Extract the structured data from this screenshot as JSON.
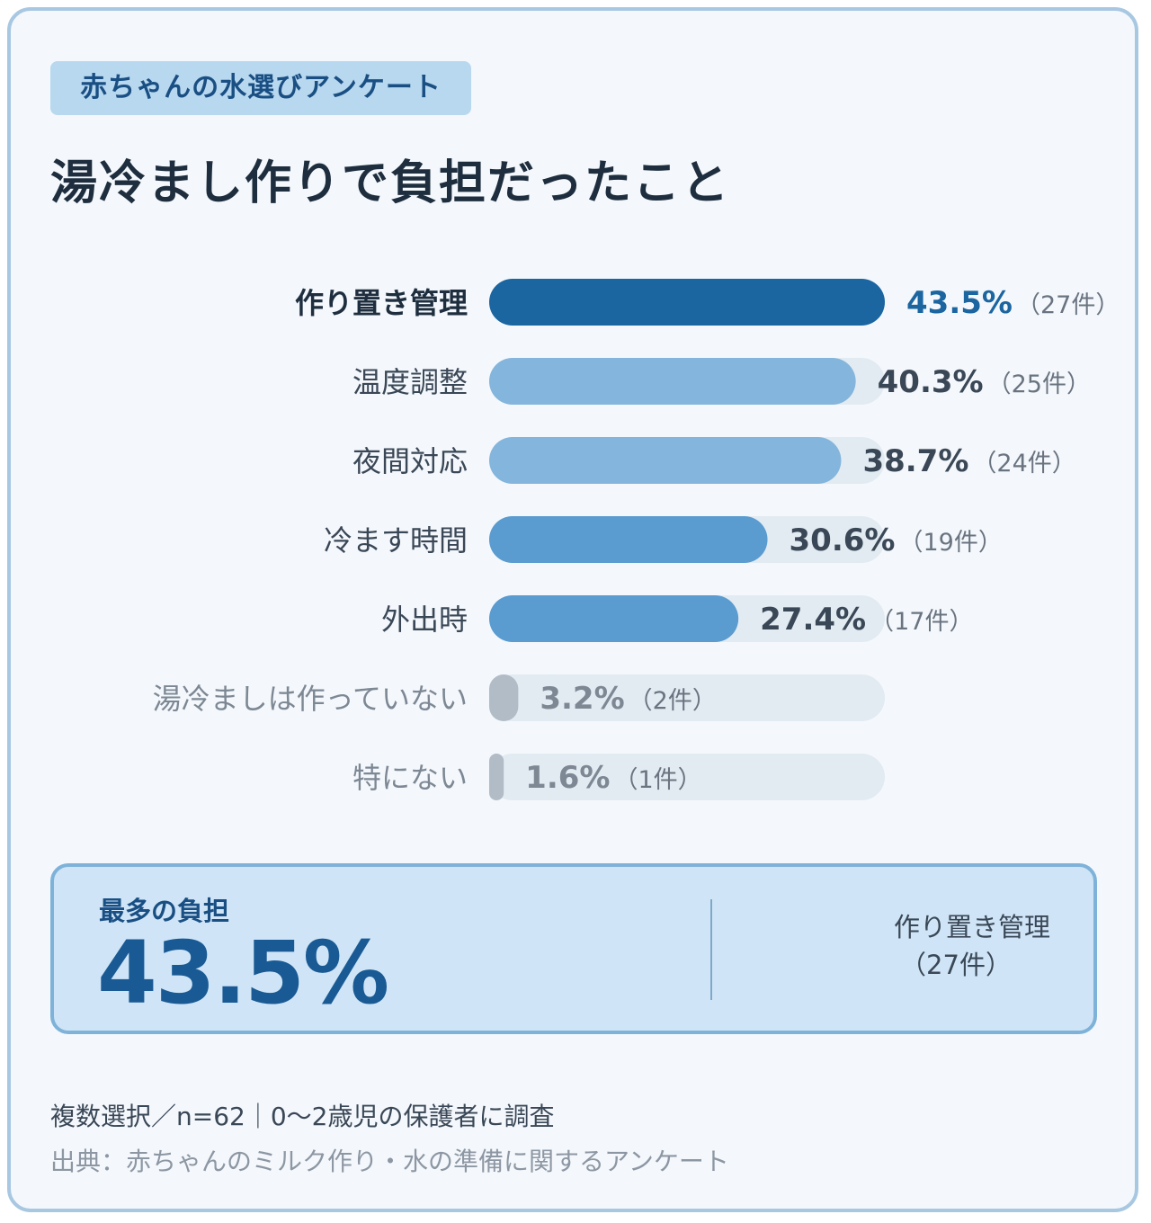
{
  "header": {
    "tag": "赤ちゃんの水選びアンケート",
    "title": "湯冷まし作りで負担だったこと"
  },
  "chart_data": {
    "type": "bar",
    "orientation": "horizontal",
    "categories": [
      "作り置き管理",
      "温度調整",
      "夜間対応",
      "冷ます時間",
      "外出時",
      "湯冷ましは作っていない",
      "特にない"
    ],
    "values": [
      43.5,
      40.3,
      38.7,
      30.6,
      27.4,
      3.2,
      1.6
    ],
    "value_labels": [
      "43.5%",
      "40.3%",
      "38.7%",
      "30.6%",
      "27.4%",
      "3.2%",
      "1.6%"
    ],
    "counts": [
      27,
      25,
      24,
      19,
      17,
      2,
      1
    ],
    "count_labels": [
      "（27件）",
      "（25件）",
      "（24件）",
      "（19件）",
      "（17件）",
      "（2件）",
      "（1件）"
    ],
    "xlim": [
      0,
      43.5
    ],
    "unit": "%",
    "colors": {
      "top": "#1b65a0",
      "high": "#84b5dc",
      "mid": "#5a9bd0",
      "low": "#b2bcc6",
      "track": "#e2ebf2",
      "label_dark": "#1e2e3e",
      "label_mid": "#3a4756",
      "label_muted": "#7d8894",
      "pct_top": "#1b65a0",
      "pct_mid": "#3a4756",
      "pct_muted": "#7d8894",
      "cnt": "#6a7480"
    },
    "color_groups": [
      "top",
      "high",
      "high",
      "mid",
      "mid",
      "low",
      "low"
    ]
  },
  "summary": {
    "label": "最多の負担",
    "value": "43.5%",
    "category": "作り置き管理",
    "count": "（27件）"
  },
  "footer": {
    "note": "複数選択／n=62｜0〜2歳児の保護者に調査",
    "source": "出典：赤ちゃんのミルク作り・水の準備に関するアンケート"
  }
}
